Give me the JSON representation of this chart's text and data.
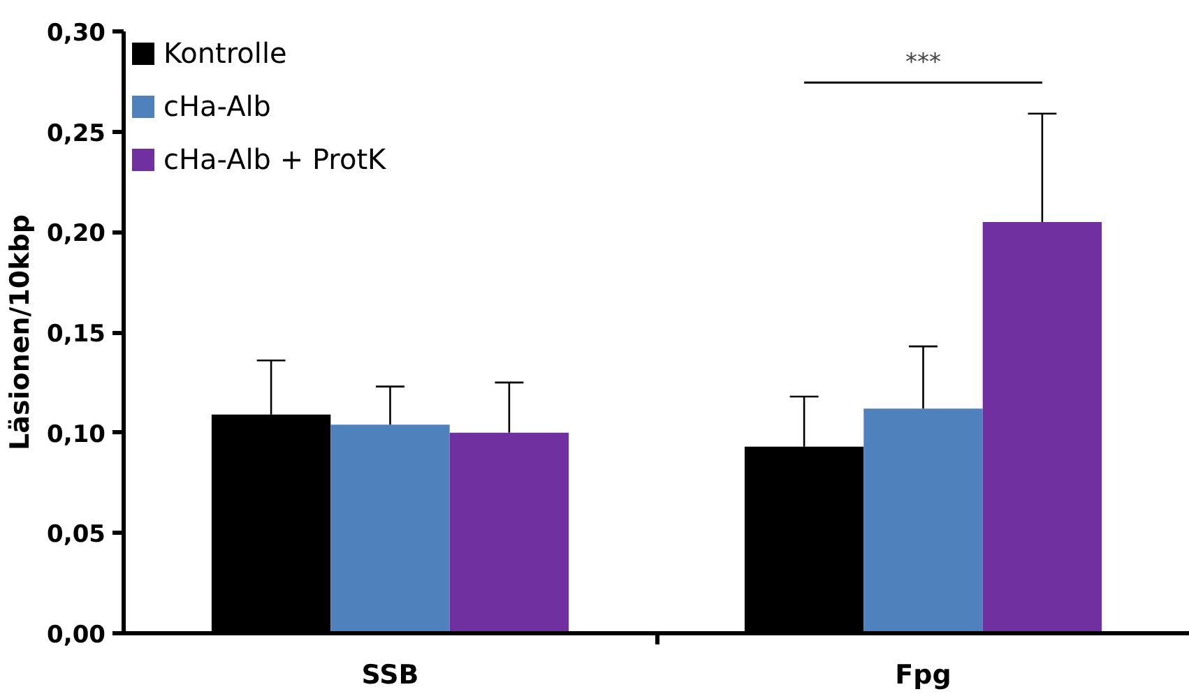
{
  "chart_data": {
    "type": "bar",
    "ylabel": "Läsionen/10kbp",
    "categories": [
      "SSB",
      "Fpg"
    ],
    "series": [
      {
        "name": "Kontrolle",
        "color": "#000000",
        "values": [
          0.109,
          0.093
        ],
        "errors": [
          [
            0.109,
            0.136
          ],
          [
            0.093,
            0.118
          ]
        ]
      },
      {
        "name": "cHa-Alb",
        "color": "#4f81bd",
        "values": [
          0.104,
          0.112
        ],
        "errors": [
          [
            0.104,
            0.123
          ],
          [
            0.112,
            0.143
          ]
        ]
      },
      {
        "name": "cHa-Alb + ProtK",
        "color": "#7030a0",
        "values": [
          0.1,
          0.205
        ],
        "errors": [
          [
            0.1,
            0.125
          ],
          [
            0.205,
            0.259
          ]
        ]
      }
    ],
    "ylim": [
      0,
      0.3
    ],
    "yticks": [
      {
        "value": 0,
        "label": "0,00"
      },
      {
        "value": 0.05,
        "label": "0,05"
      },
      {
        "value": 0.1,
        "label": "0,10"
      },
      {
        "value": 0.15,
        "label": "0,15"
      },
      {
        "value": 0.2,
        "label": "0,20"
      },
      {
        "value": 0.25,
        "label": "0,25"
      },
      {
        "value": 0.3,
        "label": "0,30"
      }
    ],
    "annotations": [
      "***"
    ],
    "grid": false,
    "legend": "top left"
  }
}
